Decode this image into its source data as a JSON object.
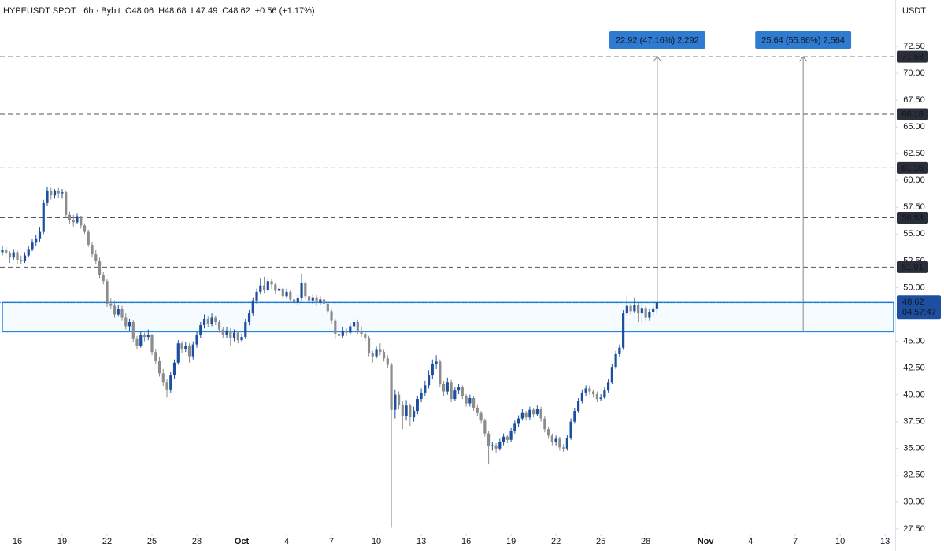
{
  "chart_data": {
    "type": "candlestick",
    "title": "HYPEUSDT SPOT · 6h · Bybit",
    "ohlc_labels": [
      "O48.06",
      "H48.68",
      "L47.49",
      "C48.62"
    ],
    "change_label": "+0.56 (+1.17%)",
    "currency": "USDT",
    "up_color": "#1c4fa0",
    "down_color": "#8c8c8c",
    "xlim": [
      -0.63,
      238.7
    ],
    "xticks": [
      {
        "value": 4,
        "label": "16"
      },
      {
        "value": 16,
        "label": "19"
      },
      {
        "value": 28,
        "label": "22"
      },
      {
        "value": 40,
        "label": "25"
      },
      {
        "value": 52,
        "label": "28"
      },
      {
        "value": 64,
        "label": "Oct"
      },
      {
        "value": 76,
        "label": "4"
      },
      {
        "value": 88,
        "label": "7"
      },
      {
        "value": 100,
        "label": "10"
      },
      {
        "value": 112,
        "label": "13"
      },
      {
        "value": 124,
        "label": "16"
      },
      {
        "value": 136,
        "label": "19"
      },
      {
        "value": 148,
        "label": "22"
      },
      {
        "value": 160,
        "label": "25"
      },
      {
        "value": 172,
        "label": "28"
      },
      {
        "value": 188,
        "label": "Nov"
      },
      {
        "value": 200,
        "label": "4"
      },
      {
        "value": 212,
        "label": "7"
      },
      {
        "value": 224,
        "label": "10"
      },
      {
        "value": 236,
        "label": "13"
      }
    ],
    "ylim": [
      27.05,
      76.83
    ],
    "yticks": [
      {
        "value": 27.5,
        "label": "27.50"
      },
      {
        "value": 30,
        "label": "30.00"
      },
      {
        "value": 32.5,
        "label": "32.50"
      },
      {
        "value": 35,
        "label": "35.00"
      },
      {
        "value": 37.5,
        "label": "37.50"
      },
      {
        "value": 40,
        "label": "40.00"
      },
      {
        "value": 42.5,
        "label": "42.50"
      },
      {
        "value": 45,
        "label": "45.00"
      },
      {
        "value": 47.5,
        "label": "47.50"
      },
      {
        "value": 50,
        "label": "50.00"
      },
      {
        "value": 52.5,
        "label": "52.50"
      },
      {
        "value": 55,
        "label": "55.00"
      },
      {
        "value": 57.5,
        "label": "57.50"
      },
      {
        "value": 60,
        "label": "60.00"
      },
      {
        "value": 62.5,
        "label": "62.50"
      },
      {
        "value": 65,
        "label": "65.00"
      },
      {
        "value": 67.5,
        "label": "67.50"
      },
      {
        "value": 70,
        "label": "70.00"
      },
      {
        "value": 72.5,
        "label": "72.50"
      }
    ],
    "levels": [
      71.53,
      66.18,
      61.16,
      56.53,
      51.91
    ],
    "zone": [
      45.89,
      48.61
    ],
    "last_price": 48.62,
    "countdown": "04:57:47",
    "measures": [
      {
        "label": "22.92 (47.16%) 2,292",
        "from": 48.61,
        "to": 71.53
      },
      {
        "label": "25.64 (55.86%) 2,564",
        "from": 45.89,
        "to": 71.53
      }
    ],
    "candles": [
      [
        53.3,
        53.9,
        53.0,
        53.5
      ],
      [
        53.5,
        53.8,
        52.9,
        53.2
      ],
      [
        53.2,
        53.4,
        52.3,
        52.8
      ],
      [
        52.8,
        53.6,
        52.6,
        53.3
      ],
      [
        53.3,
        53.5,
        52.2,
        52.6
      ],
      [
        52.6,
        53.0,
        52.2,
        52.5
      ],
      [
        52.5,
        53.3,
        52.3,
        53.0
      ],
      [
        53.0,
        53.9,
        52.8,
        53.6
      ],
      [
        53.6,
        54.5,
        53.4,
        54.2
      ],
      [
        54.2,
        54.9,
        53.9,
        54.6
      ],
      [
        54.6,
        55.6,
        54.3,
        55.2
      ],
      [
        55.2,
        58.2,
        55.0,
        57.9
      ],
      [
        57.9,
        59.4,
        57.6,
        59.0
      ],
      [
        59.0,
        59.3,
        58.2,
        58.6
      ],
      [
        58.6,
        59.2,
        58.3,
        59.0
      ],
      [
        59.0,
        59.3,
        58.4,
        58.8
      ],
      [
        58.8,
        59.2,
        58.3,
        58.9
      ],
      [
        58.9,
        59.0,
        56.5,
        56.8
      ],
      [
        56.8,
        57.1,
        56.0,
        56.3
      ],
      [
        56.3,
        56.8,
        55.7,
        56.1
      ],
      [
        56.1,
        56.9,
        55.9,
        56.6
      ],
      [
        56.6,
        56.7,
        55.5,
        55.8
      ],
      [
        55.8,
        56.0,
        55.0,
        55.2
      ],
      [
        55.2,
        55.4,
        53.8,
        54.0
      ],
      [
        54.0,
        54.3,
        52.8,
        53.1
      ],
      [
        53.1,
        53.5,
        52.2,
        52.5
      ],
      [
        52.5,
        52.8,
        50.9,
        51.2
      ],
      [
        51.2,
        51.5,
        50.3,
        50.6
      ],
      [
        50.6,
        50.8,
        48.2,
        48.5
      ],
      [
        48.5,
        49.0,
        48.0,
        48.3
      ],
      [
        48.3,
        48.8,
        47.2,
        47.5
      ],
      [
        47.5,
        48.4,
        47.3,
        48.0
      ],
      [
        48.0,
        48.3,
        46.9,
        47.2
      ],
      [
        47.2,
        47.6,
        46.1,
        46.4
      ],
      [
        46.4,
        47.1,
        46.0,
        46.8
      ],
      [
        46.8,
        47.0,
        44.9,
        45.2
      ],
      [
        45.2,
        45.5,
        44.3,
        44.6
      ],
      [
        44.6,
        45.9,
        44.4,
        45.6
      ],
      [
        45.6,
        45.8,
        45.0,
        45.4
      ],
      [
        45.4,
        46.1,
        45.1,
        45.6
      ],
      [
        45.6,
        45.7,
        43.7,
        44.0
      ],
      [
        44.0,
        44.3,
        42.9,
        43.2
      ],
      [
        43.2,
        43.5,
        41.7,
        42.0
      ],
      [
        42.0,
        42.4,
        40.8,
        41.2
      ],
      [
        41.2,
        41.5,
        39.8,
        40.5
      ],
      [
        40.5,
        42.1,
        40.2,
        41.8
      ],
      [
        41.8,
        43.3,
        41.5,
        43.0
      ],
      [
        43.0,
        45.1,
        42.8,
        44.8
      ],
      [
        44.8,
        45.0,
        43.9,
        44.3
      ],
      [
        44.3,
        44.9,
        44.0,
        44.6
      ],
      [
        44.6,
        44.8,
        43.0,
        43.6
      ],
      [
        43.6,
        45.0,
        43.3,
        44.7
      ],
      [
        44.7,
        45.9,
        44.4,
        45.6
      ],
      [
        45.6,
        46.8,
        45.3,
        46.5
      ],
      [
        46.5,
        47.5,
        46.2,
        47.1
      ],
      [
        47.1,
        47.3,
        46.3,
        46.6
      ],
      [
        46.6,
        47.6,
        46.4,
        47.2
      ],
      [
        47.2,
        47.4,
        46.5,
        46.8
      ],
      [
        46.8,
        47.0,
        45.8,
        46.1
      ],
      [
        46.1,
        46.3,
        45.3,
        45.6
      ],
      [
        45.6,
        46.3,
        45.3,
        46.0
      ],
      [
        46.0,
        46.2,
        44.6,
        45.3
      ],
      [
        45.3,
        46.1,
        45.0,
        45.8
      ],
      [
        45.8,
        46.0,
        44.8,
        45.1
      ],
      [
        45.1,
        45.7,
        44.9,
        45.4
      ],
      [
        45.4,
        47.1,
        45.2,
        46.8
      ],
      [
        46.8,
        47.9,
        46.5,
        47.6
      ],
      [
        47.6,
        49.1,
        47.4,
        48.8
      ],
      [
        48.8,
        49.9,
        48.5,
        49.6
      ],
      [
        49.6,
        50.9,
        49.4,
        50.2
      ],
      [
        50.2,
        51.0,
        49.5,
        49.8
      ],
      [
        49.8,
        50.9,
        49.6,
        50.6
      ],
      [
        50.6,
        50.8,
        49.9,
        50.3
      ],
      [
        50.3,
        50.5,
        49.4,
        49.7
      ],
      [
        49.7,
        50.2,
        49.4,
        49.9
      ],
      [
        49.9,
        50.1,
        48.9,
        49.2
      ],
      [
        49.2,
        49.9,
        49.0,
        49.6
      ],
      [
        49.6,
        49.8,
        48.6,
        48.9
      ],
      [
        48.9,
        49.1,
        48.3,
        48.6
      ],
      [
        48.6,
        49.3,
        48.4,
        49.0
      ],
      [
        49.0,
        51.3,
        48.8,
        50.4
      ],
      [
        50.4,
        50.6,
        48.9,
        49.2
      ],
      [
        49.2,
        49.5,
        48.5,
        48.8
      ],
      [
        48.8,
        49.4,
        48.5,
        49.1
      ],
      [
        49.1,
        49.3,
        48.3,
        48.6
      ],
      [
        48.6,
        49.2,
        48.4,
        48.9
      ],
      [
        48.9,
        49.1,
        48.2,
        48.5
      ],
      [
        48.5,
        48.7,
        47.5,
        47.8
      ],
      [
        47.8,
        48.0,
        46.6,
        46.9
      ],
      [
        46.9,
        47.1,
        45.2,
        45.7
      ],
      [
        45.7,
        46.0,
        45.2,
        45.5
      ],
      [
        45.5,
        46.3,
        45.3,
        46.0
      ],
      [
        46.0,
        46.2,
        45.5,
        45.8
      ],
      [
        45.8,
        46.7,
        45.6,
        46.4
      ],
      [
        46.4,
        47.2,
        46.1,
        46.8
      ],
      [
        46.8,
        47.0,
        45.7,
        46.0
      ],
      [
        46.0,
        46.4,
        45.4,
        45.7
      ],
      [
        45.7,
        45.9,
        45.0,
        45.3
      ],
      [
        45.3,
        45.5,
        43.6,
        43.9
      ],
      [
        43.9,
        44.1,
        43.0,
        43.6
      ],
      [
        43.6,
        44.5,
        43.4,
        44.2
      ],
      [
        44.2,
        44.8,
        43.7,
        44.0
      ],
      [
        44.0,
        44.2,
        43.1,
        43.4
      ],
      [
        43.4,
        43.7,
        42.5,
        42.8
      ],
      [
        42.8,
        43.0,
        27.6,
        38.6
      ],
      [
        38.6,
        40.5,
        37.8,
        40.0
      ],
      [
        40.0,
        40.3,
        38.7,
        39.1
      ],
      [
        39.1,
        39.4,
        36.8,
        38.0
      ],
      [
        38.0,
        39.5,
        37.6,
        39.0
      ],
      [
        39.0,
        39.2,
        37.1,
        37.9
      ],
      [
        37.9,
        38.9,
        37.5,
        38.5
      ],
      [
        38.5,
        39.9,
        38.2,
        39.6
      ],
      [
        39.6,
        40.6,
        39.3,
        40.2
      ],
      [
        40.2,
        41.3,
        39.9,
        40.9
      ],
      [
        40.9,
        42.3,
        40.6,
        41.8
      ],
      [
        41.8,
        43.3,
        41.5,
        42.9
      ],
      [
        42.9,
        43.7,
        42.4,
        43.1
      ],
      [
        43.1,
        43.3,
        40.7,
        41.0
      ],
      [
        41.0,
        41.3,
        39.9,
        40.3
      ],
      [
        40.3,
        41.6,
        40.0,
        41.2
      ],
      [
        41.2,
        41.4,
        39.3,
        39.6
      ],
      [
        39.6,
        40.7,
        39.4,
        40.4
      ],
      [
        40.4,
        41.0,
        40.1,
        40.7
      ],
      [
        40.7,
        40.9,
        39.6,
        39.9
      ],
      [
        39.9,
        40.1,
        38.9,
        39.2
      ],
      [
        39.2,
        40.0,
        38.9,
        39.7
      ],
      [
        39.7,
        39.9,
        38.5,
        38.8
      ],
      [
        38.8,
        39.1,
        38.0,
        38.3
      ],
      [
        38.3,
        38.5,
        37.3,
        37.6
      ],
      [
        37.6,
        37.8,
        36.1,
        36.4
      ],
      [
        36.4,
        36.6,
        33.5,
        35.2
      ],
      [
        35.2,
        35.6,
        34.8,
        35.3
      ],
      [
        35.3,
        35.5,
        34.6,
        35.0
      ],
      [
        35.0,
        35.9,
        34.8,
        35.6
      ],
      [
        35.6,
        36.4,
        35.3,
        36.1
      ],
      [
        36.1,
        36.3,
        35.5,
        35.8
      ],
      [
        35.8,
        36.9,
        35.6,
        36.6
      ],
      [
        36.6,
        37.6,
        36.4,
        37.3
      ],
      [
        37.3,
        38.1,
        37.0,
        37.8
      ],
      [
        37.8,
        38.7,
        37.6,
        38.3
      ],
      [
        38.3,
        38.5,
        37.6,
        37.9
      ],
      [
        37.9,
        38.9,
        37.7,
        38.6
      ],
      [
        38.6,
        38.8,
        37.9,
        38.2
      ],
      [
        38.2,
        39.0,
        38.0,
        38.7
      ],
      [
        38.7,
        38.9,
        37.5,
        37.8
      ],
      [
        37.8,
        38.0,
        36.5,
        36.8
      ],
      [
        36.8,
        37.0,
        35.9,
        36.2
      ],
      [
        36.2,
        36.4,
        35.3,
        35.6
      ],
      [
        35.6,
        36.2,
        35.3,
        35.9
      ],
      [
        35.9,
        36.1,
        34.8,
        35.1
      ],
      [
        35.1,
        35.4,
        34.7,
        35.0
      ],
      [
        35.0,
        36.3,
        34.8,
        36.0
      ],
      [
        36.0,
        37.8,
        35.8,
        37.5
      ],
      [
        37.5,
        38.8,
        37.3,
        38.5
      ],
      [
        38.5,
        39.7,
        38.3,
        39.4
      ],
      [
        39.4,
        40.5,
        39.2,
        40.2
      ],
      [
        40.2,
        40.9,
        39.9,
        40.6
      ],
      [
        40.6,
        40.8,
        40.0,
        40.3
      ],
      [
        40.3,
        40.5,
        39.8,
        40.1
      ],
      [
        40.1,
        40.3,
        39.3,
        39.6
      ],
      [
        39.6,
        40.1,
        39.4,
        39.8
      ],
      [
        39.8,
        40.7,
        39.6,
        40.4
      ],
      [
        40.4,
        41.5,
        40.2,
        41.2
      ],
      [
        41.2,
        42.9,
        41.0,
        42.6
      ],
      [
        42.6,
        44.1,
        42.4,
        43.8
      ],
      [
        43.8,
        44.7,
        43.5,
        44.4
      ],
      [
        44.4,
        47.9,
        44.2,
        47.6
      ],
      [
        47.6,
        49.3,
        47.4,
        48.3
      ],
      [
        48.3,
        48.7,
        47.5,
        47.8
      ],
      [
        47.8,
        49.1,
        47.6,
        48.4
      ],
      [
        48.4,
        48.6,
        46.8,
        47.6
      ],
      [
        47.6,
        48.5,
        46.7,
        48.1
      ],
      [
        48.1,
        48.3,
        46.9,
        47.2
      ],
      [
        47.2,
        48.0,
        46.9,
        47.7
      ],
      [
        47.7,
        48.3,
        47.3,
        48.06
      ],
      [
        48.06,
        48.68,
        47.49,
        48.62
      ]
    ]
  }
}
